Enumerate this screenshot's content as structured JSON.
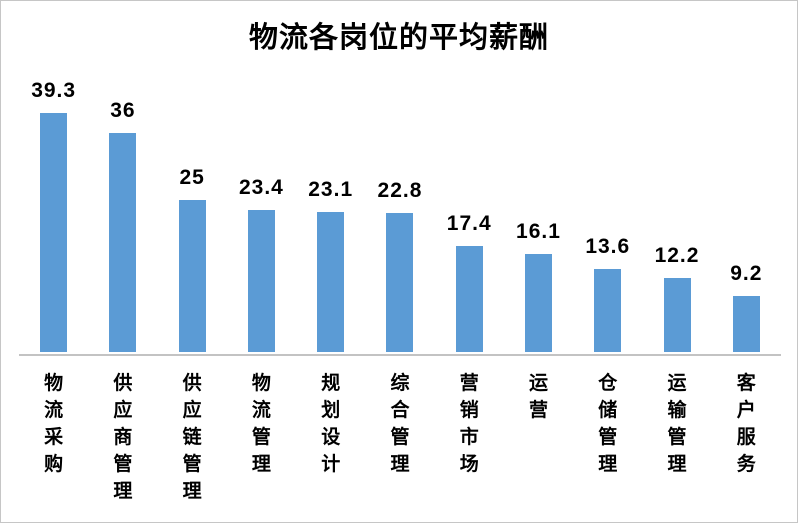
{
  "chart_data": {
    "type": "bar",
    "title": "物流各岗位的平均薪酬",
    "categories": [
      "物流采购",
      "供应商管理",
      "供应链管理",
      "物流管理",
      "规划设计",
      "综合管理",
      "营销市场",
      "运营",
      "仓储管理",
      "运输管理",
      "客户服务"
    ],
    "values": [
      39.3,
      36,
      25,
      23.4,
      23.1,
      22.8,
      17.4,
      16.1,
      13.6,
      12.2,
      9.2
    ],
    "xlabel": "",
    "ylabel": "",
    "ylim": [
      0,
      40
    ],
    "grid": "off",
    "legend": "none",
    "value_labels": "above-bars",
    "bar_color": "#5B9BD5",
    "axis_line_color": "#C3C3C3",
    "text_color": "#000000"
  }
}
